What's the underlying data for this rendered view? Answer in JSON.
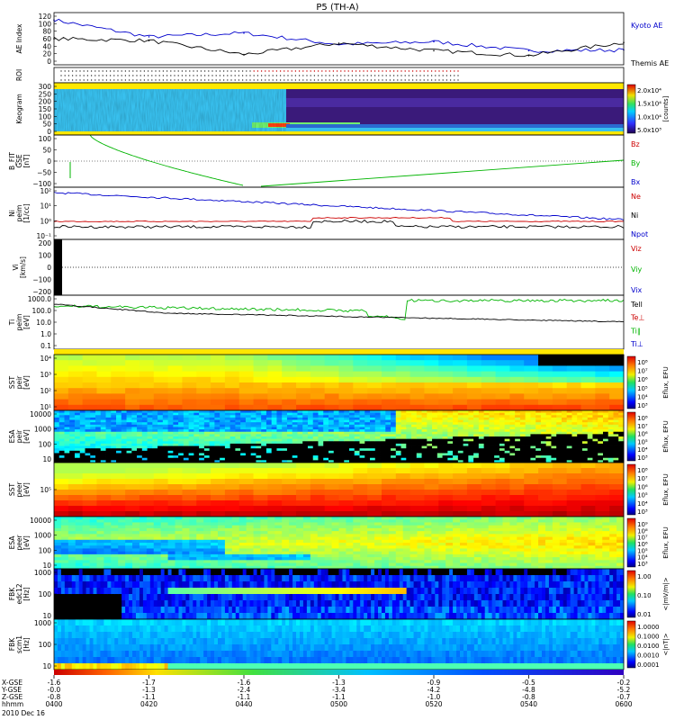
{
  "title": "P5 (TH-A)",
  "date_label": "2010 Dec 16",
  "x_axis": {
    "ticks": [
      "0400",
      "0420",
      "0440",
      "0500",
      "0520",
      "0540",
      "0600"
    ],
    "rows": [
      {
        "label": "X-GSE",
        "values": [
          "-1.6",
          "-1.7",
          "-1.6",
          "-1.3",
          "-0.9",
          "-0.5",
          "-0.2"
        ]
      },
      {
        "label": "Y-GSE",
        "values": [
          "-0.0",
          "-1.3",
          "-2.4",
          "-3.4",
          "-4.2",
          "-4.8",
          "-5.2"
        ]
      },
      {
        "label": "Z-GSE",
        "values": [
          "-0.8",
          "-1.1",
          "-1.1",
          "-1.1",
          "-1.0",
          "-0.8",
          "-0.7"
        ]
      },
      {
        "label": "hhmm",
        "values": [
          "0400",
          "0420",
          "0440",
          "0500",
          "0520",
          "0540",
          "0600"
        ]
      }
    ]
  },
  "colors": {
    "blue": "#0000cc",
    "red": "#cc0000",
    "green": "#00b400",
    "black": "#000000",
    "yellow": "#ffe600"
  },
  "panels": [
    {
      "key": "ae",
      "ylabel": [
        "AE Index"
      ],
      "yticks": [
        "120",
        "100",
        "80",
        "60",
        "40",
        "20",
        "0"
      ],
      "legend": [
        {
          "text": "Kyoto AE",
          "color": "#0000cc"
        },
        {
          "text": "Themis AE",
          "color": "#000000"
        }
      ]
    },
    {
      "key": "roi",
      "ylabel": [
        "ROI"
      ],
      "yticks": [],
      "legend": []
    },
    {
      "key": "keogram",
      "ylabel": [
        "Keogram"
      ],
      "yticks": [
        "300",
        "250",
        "200",
        "150",
        "100",
        "50",
        "0"
      ],
      "legend": [],
      "colorbar": {
        "labels": [
          "2.0x10⁴",
          "1.5x10⁴",
          "1.0x10⁴",
          "5.0x10³"
        ],
        "unit": "[counts]"
      }
    },
    {
      "key": "bfit",
      "ylabel": [
        "B_FIT",
        "GSE",
        "[nT]"
      ],
      "yticks": [
        "100",
        "50",
        "0",
        "−50",
        "−100"
      ],
      "legend": [
        {
          "text": "Bz",
          "color": "#cc0000"
        },
        {
          "text": "By",
          "color": "#00b400"
        },
        {
          "text": "Bx",
          "color": "#0000cc"
        }
      ]
    },
    {
      "key": "ni",
      "ylabel": [
        "Ni",
        "peim",
        "[1/cc]"
      ],
      "yticks": [
        "10²",
        "10¹",
        "10⁰",
        "10⁻¹"
      ],
      "legend": [
        {
          "text": "Ne",
          "color": "#cc0000"
        },
        {
          "text": "Ni",
          "color": "#000000"
        },
        {
          "text": "Npot",
          "color": "#0000cc"
        }
      ]
    },
    {
      "key": "vi",
      "ylabel": [
        "Vi",
        "[km/s]"
      ],
      "yticks": [
        "200",
        "100",
        "0",
        "−100",
        "−200"
      ],
      "legend": [
        {
          "text": "Viz",
          "color": "#cc0000"
        },
        {
          "text": "Viy",
          "color": "#00b400"
        },
        {
          "text": "Vix",
          "color": "#0000cc"
        }
      ]
    },
    {
      "key": "ti",
      "ylabel": [
        "Ti",
        "peim",
        "[eV]"
      ],
      "yticks": [
        "1000.0",
        "100.0",
        "10.0",
        "1.0",
        "0.1"
      ],
      "legend": [
        {
          "text": "Tell",
          "color": "#000000"
        },
        {
          "text": "Te⊥",
          "color": "#cc0000"
        },
        {
          "text": "Ti∥",
          "color": "#00b400"
        },
        {
          "text": "Ti⊥",
          "color": "#0000cc"
        }
      ]
    },
    {
      "key": "sst_i",
      "ylabel": [
        "SST",
        "peir",
        "[eV]"
      ],
      "yticks": [
        "10⁴",
        "10³",
        "10²",
        "10¹"
      ],
      "legend": [],
      "colorbar": {
        "labels": [
          "10⁸",
          "10⁷",
          "10⁶",
          "10⁵",
          "10⁴",
          "10³"
        ],
        "unit": "Eflux, EFU"
      }
    },
    {
      "key": "esa_i",
      "ylabel": [
        "ESA",
        "peir",
        "[eV]"
      ],
      "yticks": [
        "10000",
        "1000",
        "100",
        "10"
      ],
      "legend": [],
      "colorbar": {
        "labels": [
          "10⁸",
          "10⁷",
          "10⁶",
          "10⁵",
          "10⁴",
          "10³"
        ],
        "unit": "Eflux, EFU"
      }
    },
    {
      "key": "sst_e",
      "ylabel": [
        "SST",
        "peer",
        "[eV]"
      ],
      "yticks": [
        "10⁵"
      ],
      "legend": [],
      "colorbar": {
        "labels": [
          "10⁸",
          "10⁷",
          "10⁶",
          "10⁵",
          "10⁴",
          "10³"
        ],
        "unit": "Eflux, EFU"
      }
    },
    {
      "key": "esa_e",
      "ylabel": [
        "ESA",
        "peer",
        "[eV]"
      ],
      "yticks": [
        "10000",
        "1000",
        "100",
        "10"
      ],
      "legend": [],
      "colorbar": {
        "labels": [
          "10⁹",
          "10⁸",
          "10⁷",
          "10⁶",
          "10⁵",
          "10⁴",
          "10³"
        ],
        "unit": "Eflux, EFU"
      }
    },
    {
      "key": "fbk_e",
      "ylabel": [
        "FBK",
        "edc12",
        "[Hz]"
      ],
      "yticks": [
        "1000",
        "100",
        "10"
      ],
      "legend": [],
      "colorbar": {
        "labels": [
          "1.00",
          "0.10",
          "0.01"
        ],
        "unit": "<|mV/m|>"
      }
    },
    {
      "key": "fbk_b",
      "ylabel": [
        "FBK",
        "scm1",
        "[Hz]"
      ],
      "yticks": [
        "1000",
        "100",
        "10"
      ],
      "legend": [],
      "colorbar": {
        "labels": [
          "1.0000",
          "0.1000",
          "0.0100",
          "0.0010",
          "0.0001"
        ],
        "unit": "<|nT|>"
      }
    }
  ],
  "chart_data": {
    "type": "line",
    "title": "P5 (TH-A)",
    "x": [
      "0400",
      "0420",
      "0440",
      "0500",
      "0520",
      "0540",
      "0600"
    ],
    "series": [
      {
        "name": "Kyoto AE",
        "values": [
          110,
          65,
          75,
          45,
          52,
          28,
          30
        ]
      },
      {
        "name": "Themis AE",
        "values": [
          60,
          55,
          18,
          48,
          28,
          15,
          50
        ]
      }
    ],
    "ylim": [
      0,
      120
    ]
  }
}
